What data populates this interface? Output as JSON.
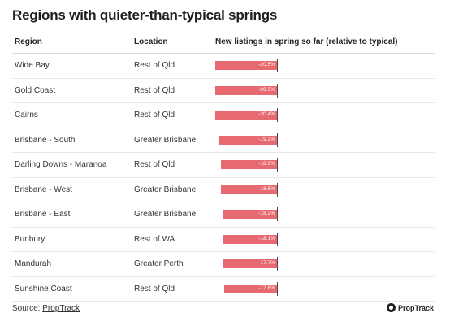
{
  "title": "Regions with quieter-than-typical springs",
  "headers": {
    "region": "Region",
    "location": "Location",
    "bar": "New listings in spring so far (relative to typical)"
  },
  "chart_data": {
    "type": "bar",
    "title": "Regions with quieter-than-typical springs",
    "xlabel": "New listings in spring so far (relative to typical)",
    "categories": [
      "Wide Bay",
      "Gold Coast",
      "Cairns",
      "Brisbane - South",
      "Darling Downs - Maranoa",
      "Brisbane - West",
      "Brisbane - East",
      "Bunbury",
      "Mandurah",
      "Sunshine Coast"
    ],
    "locations": [
      "Rest of Qld",
      "Rest of Qld",
      "Rest of Qld",
      "Greater Brisbane",
      "Rest of Qld",
      "Greater Brisbane",
      "Greater Brisbane",
      "Rest of WA",
      "Greater Perth",
      "Rest of Qld"
    ],
    "values": [
      -20.5,
      -20.5,
      -20.4,
      -19.2,
      -18.6,
      -18.5,
      -18.2,
      -18.1,
      -17.7,
      -17.6
    ],
    "labels": [
      "-20.5%",
      "-20.5%",
      "-20.4%",
      "-19.2%",
      "-18.6%",
      "-18.5%",
      "-18.2%",
      "-18.1%",
      "-17.7%",
      "-17.6%"
    ],
    "xlim": [
      -20.5,
      0
    ],
    "color": "#e66a70"
  },
  "footer": {
    "source_prefix": "Source: ",
    "source_link": "PropTrack",
    "logo_text": "PropTrack"
  }
}
